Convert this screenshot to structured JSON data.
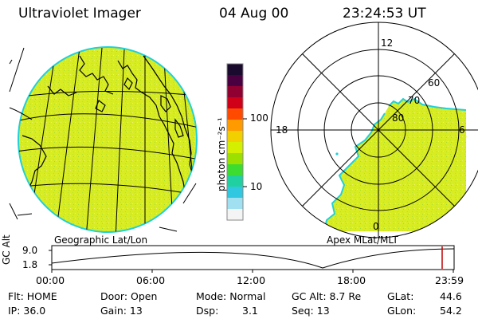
{
  "header": {
    "title": "Ultraviolet Imager",
    "date": "04 Aug 00",
    "time": "23:24:53 UT"
  },
  "colorbar": {
    "unit_label": "photon cm⁻²s⁻¹",
    "ticks": [
      "100",
      "10"
    ],
    "colors": [
      "#1a0a2e",
      "#4a0040",
      "#900030",
      "#d00018",
      "#ff4a00",
      "#ff9a00",
      "#f2d000",
      "#d4f000",
      "#9ce000",
      "#3cdc30",
      "#20d0a0",
      "#30c8e0",
      "#a0e0f0",
      "#f4f4f4"
    ]
  },
  "left_map": {
    "label": "Geographic Lat/Lon",
    "fill_color": "#d8ec22",
    "rim_color": "#20d0d8"
  },
  "right_map": {
    "label": "Apex MLat/MLT",
    "mlt_labels": {
      "top": "12",
      "left": "18",
      "right": "6",
      "bottom": "0"
    },
    "lat_labels": [
      "60",
      "70",
      "80"
    ],
    "fill_color": "#d8ec22"
  },
  "timeline": {
    "axis_title": "GC Alt",
    "y_ticks": [
      "9.0",
      "1.8"
    ],
    "x_ticks": [
      "00:00",
      "06:00",
      "12:00",
      "18:00",
      "23:59"
    ],
    "marker_color": "#c00000"
  },
  "footer": {
    "row1": {
      "flt": "Flt: HOME",
      "door": "Door: Open",
      "mode": "Mode: Normal",
      "gc_alt": "GC Alt: 8.7 Re",
      "glat_label": "GLat:",
      "glat_value": "44.6"
    },
    "row2": {
      "ip": "IP: 36.0",
      "gain": "Gain: 13",
      "dsp_label": "Dsp:",
      "dsp_value": "3.1",
      "seq": "Seq: 13",
      "glon_label": "GLon:",
      "glon_value": "54.2"
    }
  }
}
